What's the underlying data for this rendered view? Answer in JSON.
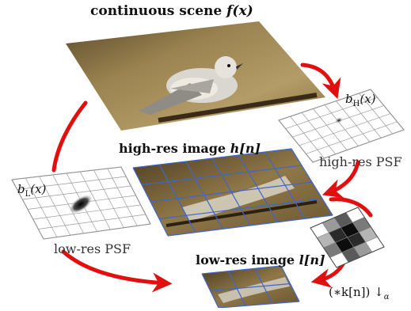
{
  "labels": {
    "scene_title_text": "continuous scene ",
    "scene_title_math": "f(x)",
    "highres_title_text": "high-res image ",
    "highres_title_math": "h[n]",
    "lowres_title_text": "low-res image ",
    "lowres_title_math": "l[n]",
    "bH_letter": "b",
    "bH_sub": "H",
    "bH_arg": "(x)",
    "bL_letter": "b",
    "bL_sub": "L",
    "bL_arg": "(x)",
    "highres_psf": "high-res PSF",
    "lowres_psf": "low-res PSF",
    "downsample_op": "(∗k[n]) ↓",
    "downsample_sub": "α"
  },
  "colors": {
    "arrow": "#e01010",
    "grid_blue": "#3f66c8",
    "psf_grid": "#9a9a9a"
  },
  "kernel_shades": [
    [
      "#ffffff",
      "#9a9a9a",
      "#5a5a5a",
      "#ffffff"
    ],
    [
      "#b5b5b5",
      "#2a2a2a",
      "#0d0d0d",
      "#7a7a7a"
    ],
    [
      "#7a7a7a",
      "#0d0d0d",
      "#2a2a2a",
      "#b5b5b5"
    ],
    [
      "#ffffff",
      "#5a5a5a",
      "#9a9a9a",
      "#ffffff"
    ]
  ]
}
